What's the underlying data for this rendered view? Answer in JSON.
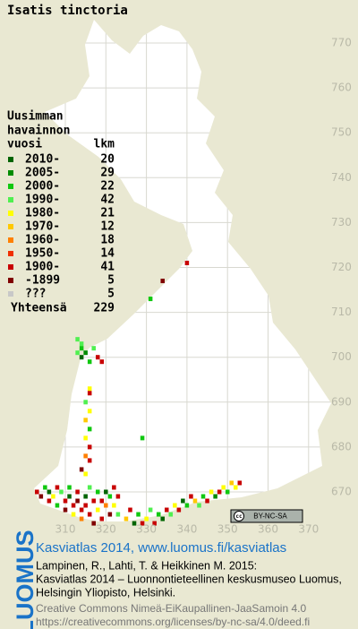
{
  "title": "Isatis tinctoria",
  "legend": {
    "heading": [
      "Uusimman",
      "havainnon",
      "vuosi"
    ],
    "count_heading": "lkm",
    "rows": [
      {
        "label": "2010-",
        "count": 20,
        "color": "#006400"
      },
      {
        "label": "2005-",
        "count": 29,
        "color": "#008c00"
      },
      {
        "label": "2000-",
        "count": 22,
        "color": "#10c810"
      },
      {
        "label": "1990-",
        "count": 42,
        "color": "#50f050"
      },
      {
        "label": "1980-",
        "count": 21,
        "color": "#ffff00"
      },
      {
        "label": "1970-",
        "count": 12,
        "color": "#ffc800"
      },
      {
        "label": "1960-",
        "count": 18,
        "color": "#ff8000"
      },
      {
        "label": "1950-",
        "count": 14,
        "color": "#f03000"
      },
      {
        "label": "1900-",
        "count": 41,
        "color": "#c80000"
      },
      {
        "label": "-1899",
        "count": 5,
        "color": "#800000"
      },
      {
        "label": "???",
        "count": 5,
        "color": "#c8c8c8"
      }
    ],
    "total_label": "Yhteensä",
    "total": 229
  },
  "map": {
    "xticks": [
      310,
      320,
      330,
      340,
      350,
      360,
      370
    ],
    "yticks": [
      770,
      760,
      750,
      740,
      730,
      720,
      710,
      700,
      690,
      680,
      670
    ],
    "squares": [
      [
        340,
        721,
        8
      ],
      [
        334,
        717,
        9
      ],
      [
        331,
        713,
        2
      ],
      [
        329,
        682,
        2
      ],
      [
        313,
        704,
        3
      ],
      [
        314,
        703,
        3
      ],
      [
        314,
        702,
        2
      ],
      [
        313,
        701,
        3
      ],
      [
        315,
        701,
        1
      ],
      [
        314,
        700,
        0
      ],
      [
        316,
        699,
        2
      ],
      [
        317,
        702,
        3
      ],
      [
        318,
        700,
        8
      ],
      [
        319,
        699,
        8
      ],
      [
        316,
        693,
        4
      ],
      [
        316,
        692,
        8
      ],
      [
        315,
        690,
        3
      ],
      [
        316,
        688,
        4
      ],
      [
        315,
        686,
        5
      ],
      [
        316,
        684,
        2
      ],
      [
        315,
        682,
        4
      ],
      [
        316,
        680,
        8
      ],
      [
        315,
        678,
        6
      ],
      [
        316,
        677,
        8
      ],
      [
        314,
        675,
        9
      ],
      [
        315,
        674,
        4
      ],
      [
        303,
        670,
        8
      ],
      [
        304,
        669,
        9
      ],
      [
        305,
        671,
        2
      ],
      [
        306,
        670,
        0
      ],
      [
        306,
        668,
        8
      ],
      [
        307,
        669,
        4
      ],
      [
        308,
        671,
        8
      ],
      [
        308,
        667,
        2
      ],
      [
        309,
        670,
        3
      ],
      [
        310,
        668,
        8
      ],
      [
        310,
        666,
        9
      ],
      [
        311,
        669,
        0
      ],
      [
        311,
        671,
        2
      ],
      [
        312,
        667,
        8
      ],
      [
        312,
        665,
        4
      ],
      [
        313,
        670,
        8
      ],
      [
        313,
        668,
        9
      ],
      [
        314,
        666,
        8
      ],
      [
        314,
        664,
        6
      ],
      [
        315,
        669,
        0
      ],
      [
        315,
        667,
        8
      ],
      [
        316,
        665,
        8
      ],
      [
        316,
        671,
        3
      ],
      [
        317,
        668,
        8
      ],
      [
        317,
        663,
        9
      ],
      [
        318,
        666,
        4
      ],
      [
        318,
        670,
        2
      ],
      [
        319,
        664,
        8
      ],
      [
        319,
        668,
        8
      ],
      [
        320,
        667,
        6
      ],
      [
        320,
        670,
        0
      ],
      [
        321,
        665,
        9
      ],
      [
        321,
        669,
        2
      ],
      [
        322,
        667,
        4
      ],
      [
        322,
        671,
        8
      ],
      [
        323,
        665,
        3
      ],
      [
        323,
        669,
        8
      ],
      [
        325,
        664,
        5
      ],
      [
        326,
        666,
        8
      ],
      [
        327,
        663,
        0
      ],
      [
        328,
        665,
        2
      ],
      [
        329,
        663,
        8
      ],
      [
        330,
        664,
        4
      ],
      [
        331,
        666,
        3
      ],
      [
        332,
        663,
        8
      ],
      [
        333,
        665,
        2
      ],
      [
        334,
        664,
        0
      ],
      [
        335,
        666,
        8
      ],
      [
        336,
        665,
        3
      ],
      [
        337,
        667,
        4
      ],
      [
        338,
        666,
        8
      ],
      [
        339,
        668,
        0
      ],
      [
        340,
        667,
        2
      ],
      [
        341,
        669,
        8
      ],
      [
        342,
        668,
        5
      ],
      [
        343,
        667,
        3
      ],
      [
        344,
        669,
        2
      ],
      [
        345,
        668,
        8
      ],
      [
        346,
        670,
        4
      ],
      [
        347,
        669,
        1
      ],
      [
        348,
        670,
        8
      ],
      [
        349,
        671,
        4
      ],
      [
        350,
        670,
        2
      ],
      [
        351,
        672,
        5
      ],
      [
        352,
        671,
        4
      ],
      [
        353,
        672,
        8
      ]
    ]
  },
  "badge": "BY-NC-SA",
  "footer": {
    "logo": "LUOMUS",
    "link": "Kasviatlas 2014, www.luomus.fi/kasviatlas",
    "citation": [
      "Lampinen, R., Lahti, T. & Heikkinen M. 2015:",
      "Kasviatlas 2014 – Luonnontieteellinen keskusmuseo Luomus,",
      "Helsingin Yliopisto, Helsinki."
    ],
    "license": [
      "Creative Commons Nimeä-EiKaupallinen-JaaSamoin 4.0",
      "https://creativecommons.org/licenses/by-nc-sa/4.0/deed.fi"
    ]
  }
}
